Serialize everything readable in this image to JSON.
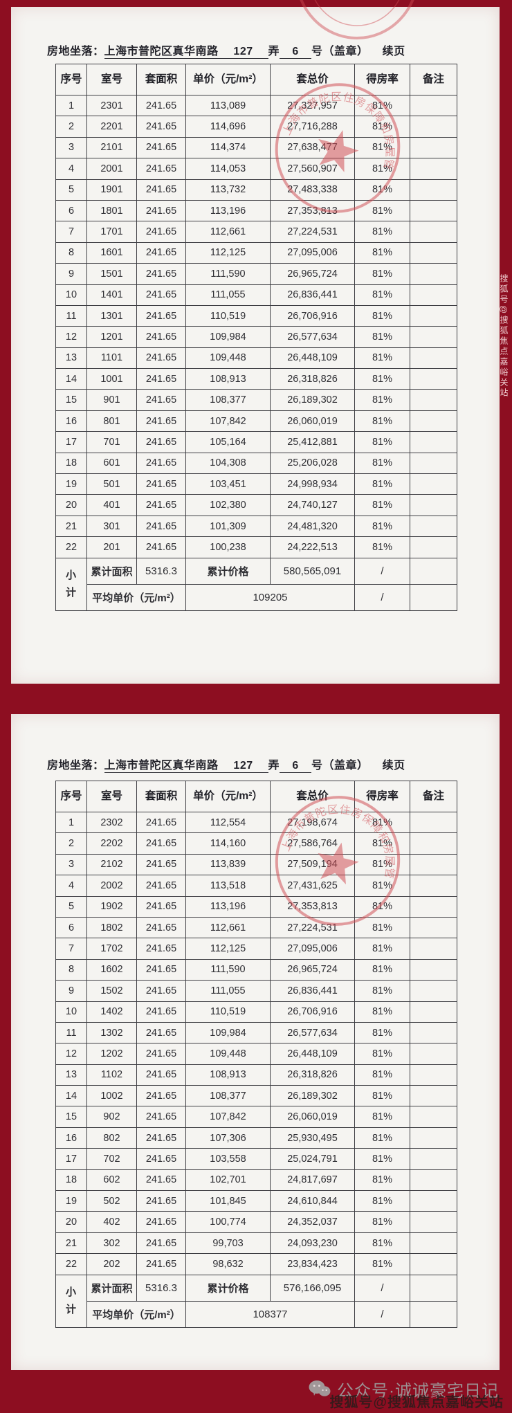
{
  "footer": {
    "wechat_label": "公众号·诚诚豪宅日记",
    "sohu_label": "搜狐号@搜狐焦点嘉峪关站",
    "side_watermark": "搜狐号@搜狐焦点嘉峪关站"
  },
  "stamp_color": "#cf4a52",
  "pages": [
    {
      "header": {
        "label": "房地坐落：",
        "address": "上海市普陀区真华南路",
        "lane_no": "127",
        "lane_unit": "弄",
        "house_no": "6",
        "house_unit": "号（盖章）",
        "continuation": "续页"
      },
      "columns": [
        "序号",
        "室号",
        "套面积",
        "单价（元/m²）",
        "套总价",
        "得房率",
        "备注"
      ],
      "rows": [
        [
          "1",
          "2301",
          "241.65",
          "113,089",
          "27,327,957",
          "81%",
          ""
        ],
        [
          "2",
          "2201",
          "241.65",
          "114,696",
          "27,716,288",
          "81%",
          ""
        ],
        [
          "3",
          "2101",
          "241.65",
          "114,374",
          "27,638,477",
          "81%",
          ""
        ],
        [
          "4",
          "2001",
          "241.65",
          "114,053",
          "27,560,907",
          "81%",
          ""
        ],
        [
          "5",
          "1901",
          "241.65",
          "113,732",
          "27,483,338",
          "81%",
          ""
        ],
        [
          "6",
          "1801",
          "241.65",
          "113,196",
          "27,353,813",
          "81%",
          ""
        ],
        [
          "7",
          "1701",
          "241.65",
          "112,661",
          "27,224,531",
          "81%",
          ""
        ],
        [
          "8",
          "1601",
          "241.65",
          "112,125",
          "27,095,006",
          "81%",
          ""
        ],
        [
          "9",
          "1501",
          "241.65",
          "111,590",
          "26,965,724",
          "81%",
          ""
        ],
        [
          "10",
          "1401",
          "241.65",
          "111,055",
          "26,836,441",
          "81%",
          ""
        ],
        [
          "11",
          "1301",
          "241.65",
          "110,519",
          "26,706,916",
          "81%",
          ""
        ],
        [
          "12",
          "1201",
          "241.65",
          "109,984",
          "26,577,634",
          "81%",
          ""
        ],
        [
          "13",
          "1101",
          "241.65",
          "109,448",
          "26,448,109",
          "81%",
          ""
        ],
        [
          "14",
          "1001",
          "241.65",
          "108,913",
          "26,318,826",
          "81%",
          ""
        ],
        [
          "15",
          "901",
          "241.65",
          "108,377",
          "26,189,302",
          "81%",
          ""
        ],
        [
          "16",
          "801",
          "241.65",
          "107,842",
          "26,060,019",
          "81%",
          ""
        ],
        [
          "17",
          "701",
          "241.65",
          "105,164",
          "25,412,881",
          "81%",
          ""
        ],
        [
          "18",
          "601",
          "241.65",
          "104,308",
          "25,206,028",
          "81%",
          ""
        ],
        [
          "19",
          "501",
          "241.65",
          "103,451",
          "24,998,934",
          "81%",
          ""
        ],
        [
          "20",
          "401",
          "241.65",
          "102,380",
          "24,740,127",
          "81%",
          ""
        ],
        [
          "21",
          "301",
          "241.65",
          "101,309",
          "24,481,320",
          "81%",
          ""
        ],
        [
          "22",
          "201",
          "241.65",
          "100,238",
          "24,222,513",
          "81%",
          ""
        ]
      ],
      "summary": {
        "subtotal_label": "小计",
        "area_label": "累计面积",
        "area_value": "5316.3",
        "price_label": "累计价格",
        "price_value": "580,565,091",
        "rate_slash_1": "/",
        "avg_label": "平均单价（元/m²）",
        "avg_value": "109205",
        "rate_slash_2": "/"
      },
      "stamp_ring_text": "上海市普陀区住房保障和房屋管理局"
    },
    {
      "header": {
        "label": "房地坐落：",
        "address": "上海市普陀区真华南路",
        "lane_no": "127",
        "lane_unit": "弄",
        "house_no": "6",
        "house_unit": "号（盖章）",
        "continuation": "续页"
      },
      "columns": [
        "序号",
        "室号",
        "套面积",
        "单价（元/m²）",
        "套总价",
        "得房率",
        "备注"
      ],
      "rows": [
        [
          "1",
          "2302",
          "241.65",
          "112,554",
          "27,198,674",
          "81%",
          ""
        ],
        [
          "2",
          "2202",
          "241.65",
          "114,160",
          "27,586,764",
          "81%",
          ""
        ],
        [
          "3",
          "2102",
          "241.65",
          "113,839",
          "27,509,194",
          "81%",
          ""
        ],
        [
          "4",
          "2002",
          "241.65",
          "113,518",
          "27,431,625",
          "81%",
          ""
        ],
        [
          "5",
          "1902",
          "241.65",
          "113,196",
          "27,353,813",
          "81%",
          ""
        ],
        [
          "6",
          "1802",
          "241.65",
          "112,661",
          "27,224,531",
          "81%",
          ""
        ],
        [
          "7",
          "1702",
          "241.65",
          "112,125",
          "27,095,006",
          "81%",
          ""
        ],
        [
          "8",
          "1602",
          "241.65",
          "111,590",
          "26,965,724",
          "81%",
          ""
        ],
        [
          "9",
          "1502",
          "241.65",
          "111,055",
          "26,836,441",
          "81%",
          ""
        ],
        [
          "10",
          "1402",
          "241.65",
          "110,519",
          "26,706,916",
          "81%",
          ""
        ],
        [
          "11",
          "1302",
          "241.65",
          "109,984",
          "26,577,634",
          "81%",
          ""
        ],
        [
          "12",
          "1202",
          "241.65",
          "109,448",
          "26,448,109",
          "81%",
          ""
        ],
        [
          "13",
          "1102",
          "241.65",
          "108,913",
          "26,318,826",
          "81%",
          ""
        ],
        [
          "14",
          "1002",
          "241.65",
          "108,377",
          "26,189,302",
          "81%",
          ""
        ],
        [
          "15",
          "902",
          "241.65",
          "107,842",
          "26,060,019",
          "81%",
          ""
        ],
        [
          "16",
          "802",
          "241.65",
          "107,306",
          "25,930,495",
          "81%",
          ""
        ],
        [
          "17",
          "702",
          "241.65",
          "103,558",
          "25,024,791",
          "81%",
          ""
        ],
        [
          "18",
          "602",
          "241.65",
          "102,701",
          "24,817,697",
          "81%",
          ""
        ],
        [
          "19",
          "502",
          "241.65",
          "101,845",
          "24,610,844",
          "81%",
          ""
        ],
        [
          "20",
          "402",
          "241.65",
          "100,774",
          "24,352,037",
          "81%",
          ""
        ],
        [
          "21",
          "302",
          "241.65",
          "99,703",
          "24,093,230",
          "81%",
          ""
        ],
        [
          "22",
          "202",
          "241.65",
          "98,632",
          "23,834,423",
          "81%",
          ""
        ]
      ],
      "summary": {
        "subtotal_label": "小计",
        "area_label": "累计面积",
        "area_value": "5316.3",
        "price_label": "累计价格",
        "price_value": "576,166,095",
        "rate_slash_1": "/",
        "avg_label": "平均单价（元/m²）",
        "avg_value": "108377",
        "rate_slash_2": "/"
      },
      "stamp_ring_text": "上海市普陀区住房保障和房屋管理局"
    }
  ]
}
